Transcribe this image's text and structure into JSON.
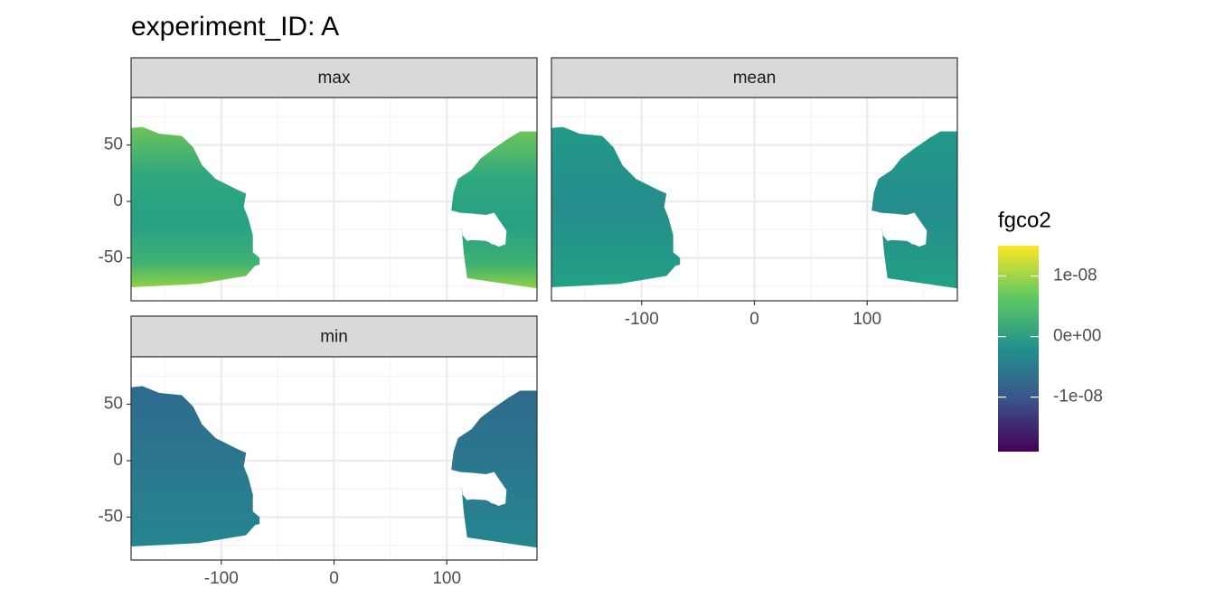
{
  "chart_data": {
    "type": "raster",
    "title": "experiment_ID: A",
    "facets": [
      "max",
      "mean",
      "min"
    ],
    "xlim": [
      -180,
      180
    ],
    "ylim": [
      -88,
      92
    ],
    "xticks": [
      -100,
      0,
      100
    ],
    "yticks": [
      -50,
      0,
      50
    ],
    "grid": true,
    "legend": {
      "title": "fgco2",
      "limits": [
        -1.9e-08,
        1.5e-08
      ],
      "ticks": [
        {
          "value": 1e-08,
          "label": "1e-08"
        },
        {
          "value": 0,
          "label": "0e+00"
        },
        {
          "value": -1e-08,
          "label": "-1e-08"
        }
      ]
    }
  }
}
